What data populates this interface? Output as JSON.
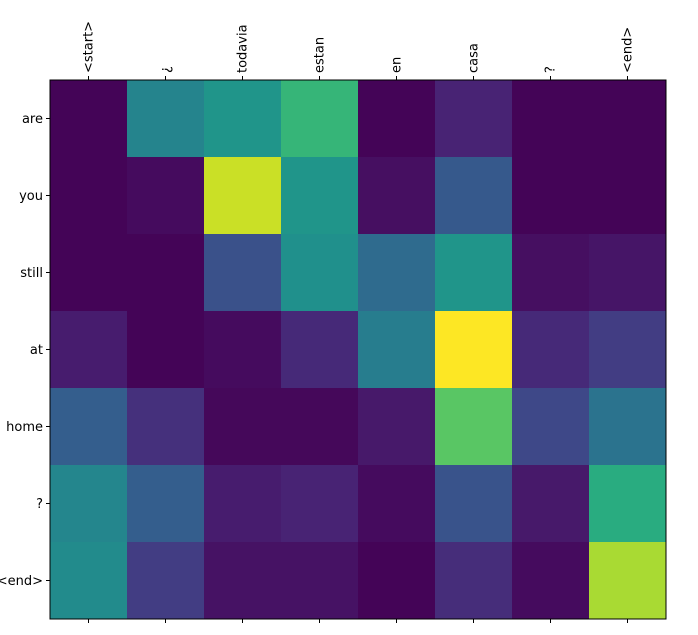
{
  "chart_data": {
    "type": "heatmap",
    "title": "",
    "xlabel": "",
    "ylabel": "",
    "x_categories": [
      "<start>",
      "¿",
      "todavia",
      "estan",
      "en",
      "casa",
      "?",
      "<end>"
    ],
    "y_categories": [
      "are",
      "you",
      "still",
      "at",
      "home",
      "?",
      "<end>"
    ],
    "x_tick_position": "top",
    "colormap": "viridis",
    "vmin": 0.0,
    "vmax": 1.0,
    "grid": false,
    "values": [
      [
        0.01,
        0.45,
        0.52,
        0.66,
        0.01,
        0.1,
        0.01,
        0.01
      ],
      [
        0.01,
        0.03,
        0.92,
        0.52,
        0.04,
        0.28,
        0.01,
        0.01
      ],
      [
        0.01,
        0.01,
        0.25,
        0.5,
        0.35,
        0.52,
        0.04,
        0.06
      ],
      [
        0.08,
        0.01,
        0.03,
        0.12,
        0.42,
        1.0,
        0.12,
        0.18
      ],
      [
        0.3,
        0.14,
        0.02,
        0.02,
        0.07,
        0.74,
        0.22,
        0.38
      ],
      [
        0.46,
        0.3,
        0.08,
        0.1,
        0.03,
        0.26,
        0.07,
        0.62
      ],
      [
        0.48,
        0.18,
        0.05,
        0.05,
        0.01,
        0.13,
        0.03,
        0.87
      ]
    ]
  }
}
